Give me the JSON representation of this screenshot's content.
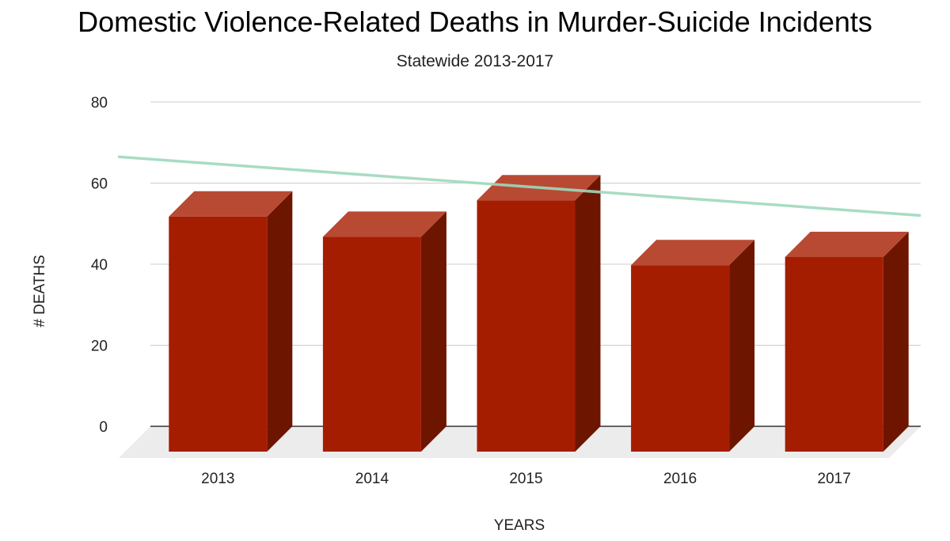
{
  "chart_data": {
    "type": "bar",
    "title": "Domestic Violence-Related Deaths in Murder-Suicide Incidents",
    "subtitle": "Statewide 2013-2017",
    "xlabel": "YEARS",
    "ylabel": "# DEATHS",
    "categories": [
      "2013",
      "2014",
      "2015",
      "2016",
      "2017"
    ],
    "values": [
      58,
      53,
      62,
      46,
      48
    ],
    "ylim": [
      0,
      80
    ],
    "yticks": [
      0,
      20,
      40,
      60,
      80
    ],
    "grid": true,
    "legend": "none",
    "style": "3d",
    "trendline": {
      "type": "linear",
      "start_value": 66.5,
      "end_value": 52
    },
    "colors": {
      "bar_front": "#a51d00",
      "bar_top": "#b84a33",
      "bar_side": "#6e1500",
      "trendline": "#9fd8bc",
      "gridline": "#cccccc",
      "floor": "#ececec"
    }
  }
}
